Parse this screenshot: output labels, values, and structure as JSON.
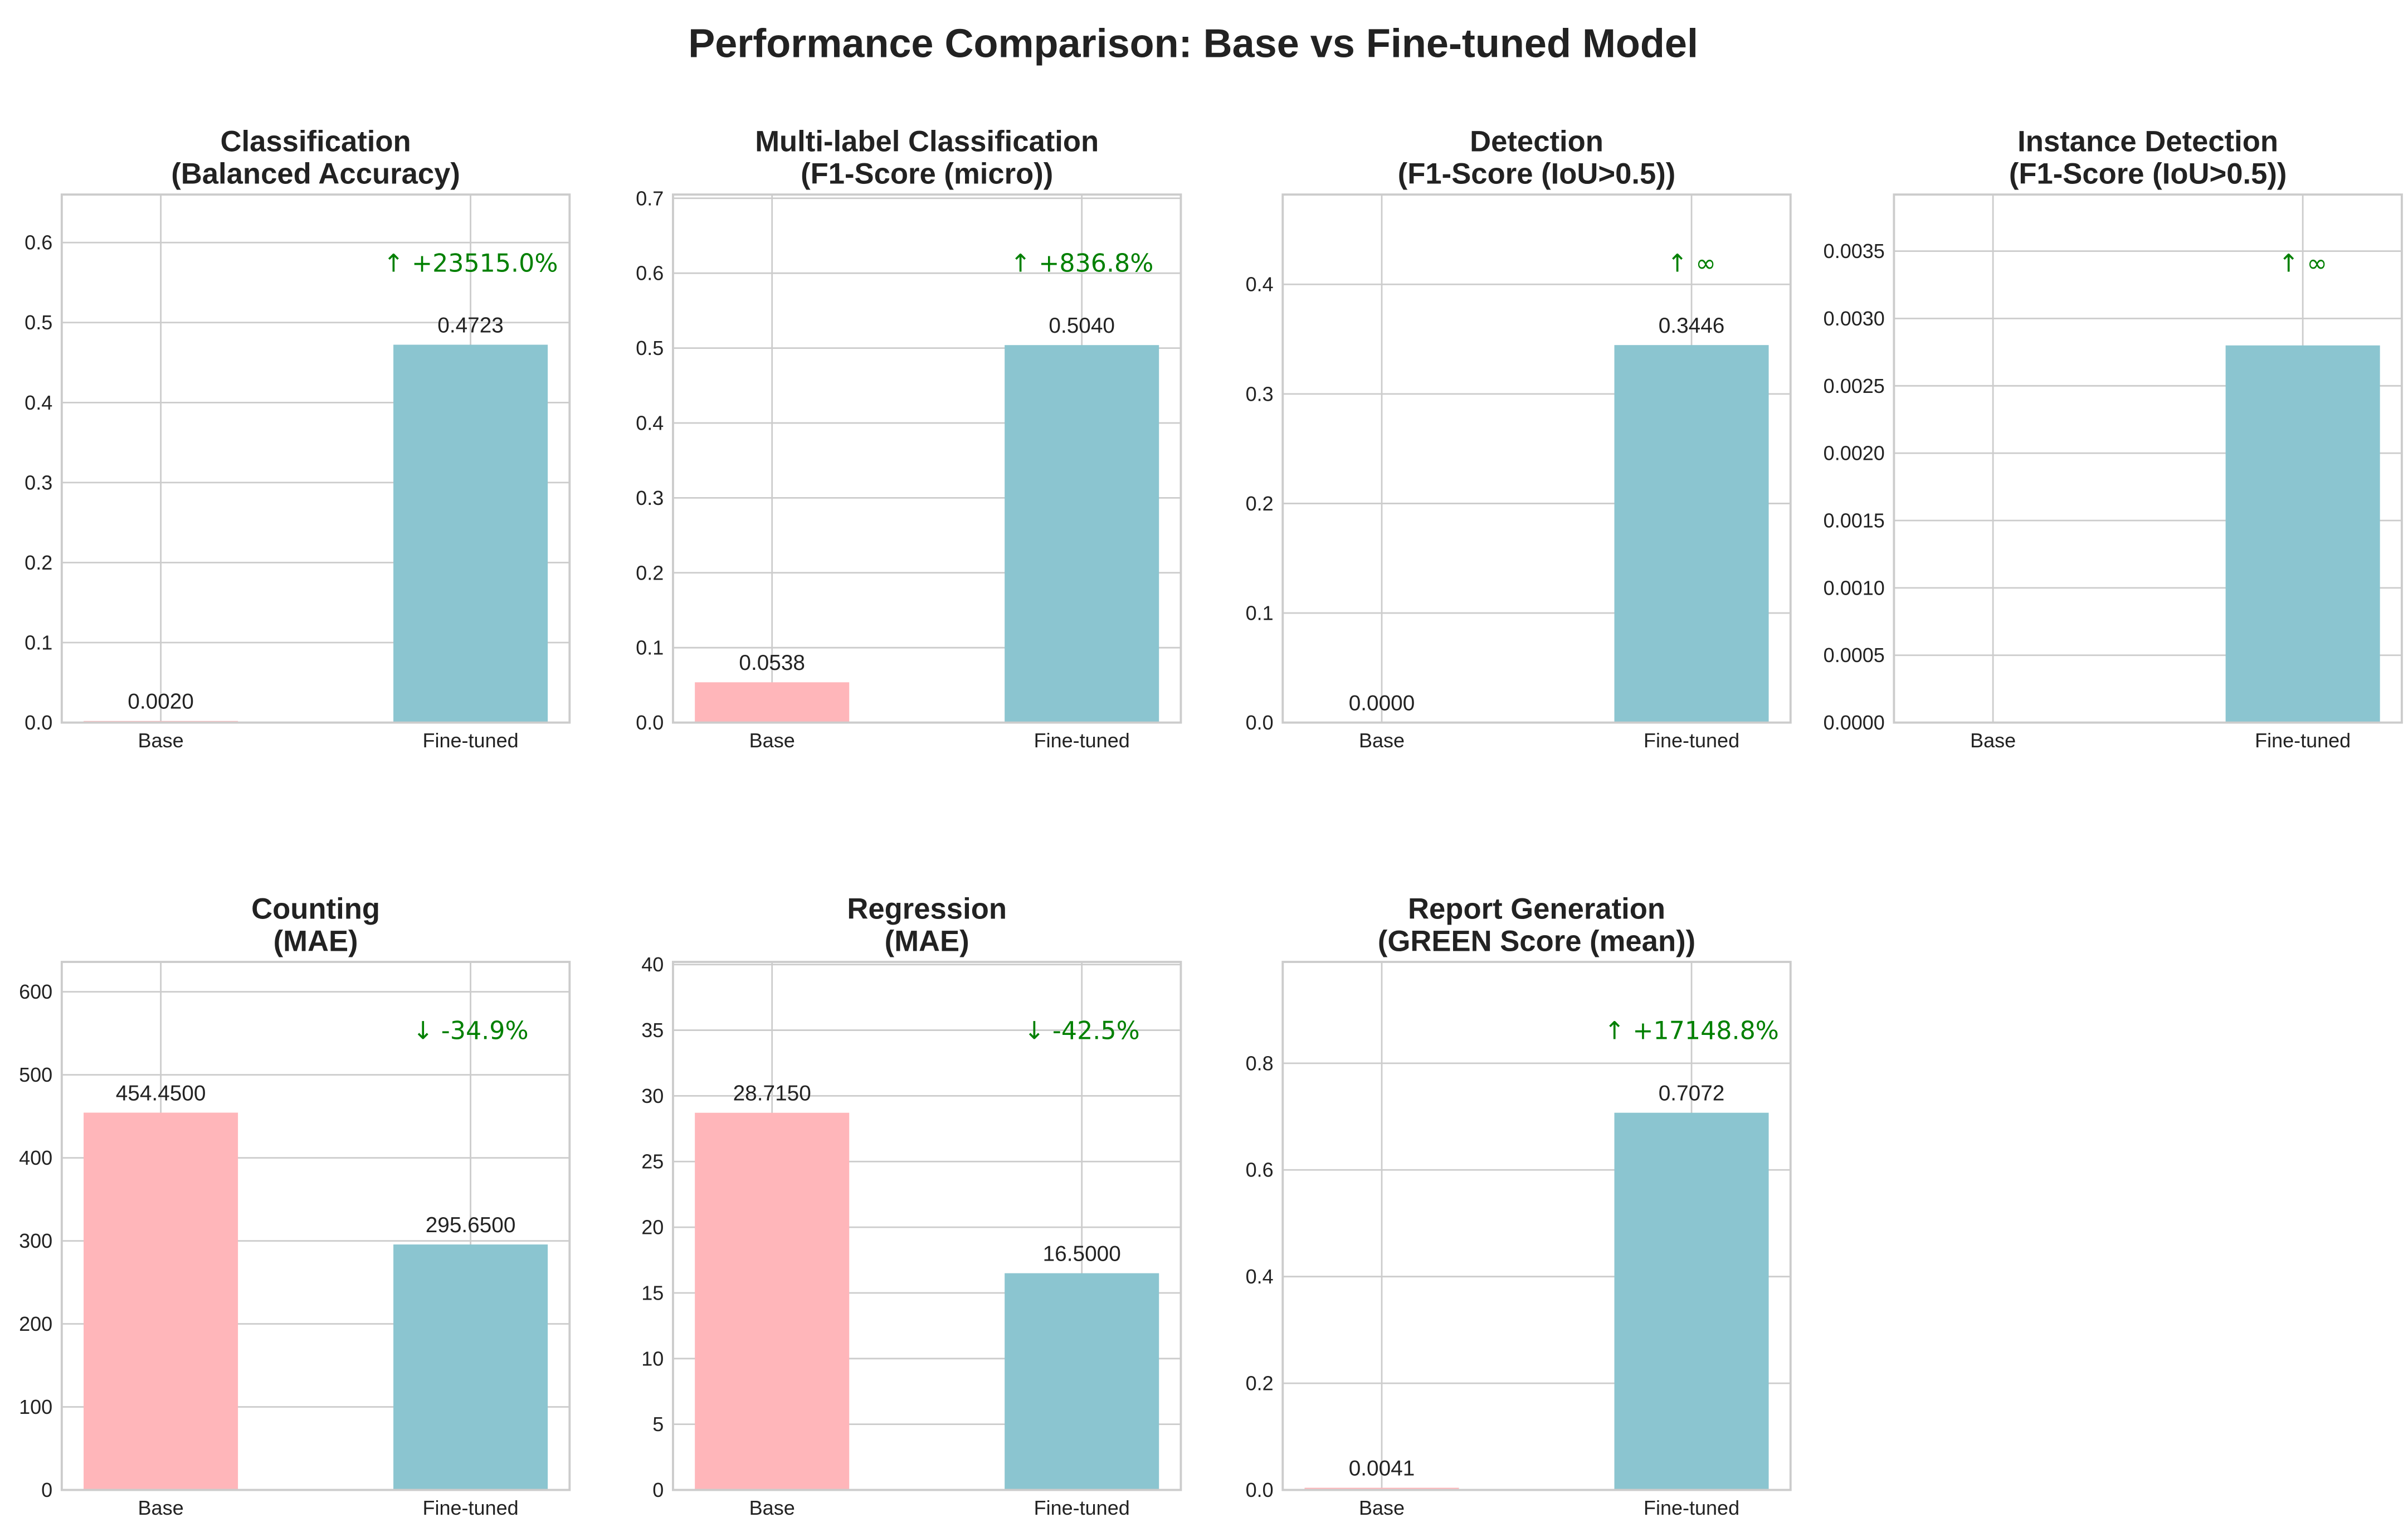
{
  "title": "Performance Comparison: Base vs Fine-tuned Model",
  "colors": {
    "base": "#ffb6ba",
    "finetuned": "#8bc5d0",
    "improvement": "#008000",
    "grid": "#cccccc"
  },
  "chart_data": [
    {
      "type": "bar",
      "title": "Classification",
      "subtitle": "(Balanced Accuracy)",
      "categories": [
        "Base",
        "Fine-tuned"
      ],
      "values": [
        0.002,
        0.4723
      ],
      "value_labels": [
        "0.0020",
        "0.4723"
      ],
      "change_label": "↑ +23515.0%",
      "ylim": [
        0,
        0.66
      ],
      "yticks": [
        0,
        0.1,
        0.2,
        0.3,
        0.4,
        0.5,
        0.6
      ],
      "ytick_labels": [
        "0.0",
        "0.1",
        "0.2",
        "0.3",
        "0.4",
        "0.5",
        "0.6"
      ],
      "grid": true
    },
    {
      "type": "bar",
      "title": "Multi-label Classification",
      "subtitle": "(F1-Score (micro))",
      "categories": [
        "Base",
        "Fine-tuned"
      ],
      "values": [
        0.0538,
        0.504
      ],
      "value_labels": [
        "0.0538",
        "0.5040"
      ],
      "change_label": "↑ +836.8%",
      "ylim": [
        0,
        0.705
      ],
      "yticks": [
        0,
        0.1,
        0.2,
        0.3,
        0.4,
        0.5,
        0.6,
        0.7
      ],
      "ytick_labels": [
        "0.0",
        "0.1",
        "0.2",
        "0.3",
        "0.4",
        "0.5",
        "0.6",
        "0.7"
      ],
      "grid": true
    },
    {
      "type": "bar",
      "title": "Detection",
      "subtitle": "(F1-Score (IoU>0.5))",
      "categories": [
        "Base",
        "Fine-tuned"
      ],
      "values": [
        0.0,
        0.3446
      ],
      "value_labels": [
        "0.0000",
        "0.3446"
      ],
      "change_label": "↑ ∞",
      "ylim": [
        0,
        0.482
      ],
      "yticks": [
        0,
        0.1,
        0.2,
        0.3,
        0.4
      ],
      "ytick_labels": [
        "0.0",
        "0.1",
        "0.2",
        "0.3",
        "0.4"
      ],
      "grid": true
    },
    {
      "type": "bar",
      "title": "Instance Detection",
      "subtitle": "(F1-Score (IoU>0.5))",
      "categories": [
        "Base",
        "Fine-tuned"
      ],
      "values": [
        0.0,
        0.0028
      ],
      "value_labels": [
        "",
        ""
      ],
      "change_label": "↑ ∞",
      "ylim": [
        0,
        0.00392
      ],
      "yticks": [
        0,
        0.0005,
        0.001,
        0.0015,
        0.002,
        0.0025,
        0.003,
        0.0035
      ],
      "ytick_labels": [
        "0.0000",
        "0.0005",
        "0.0010",
        "0.0015",
        "0.0020",
        "0.0025",
        "0.0030",
        "0.0035"
      ],
      "grid": true
    },
    {
      "type": "bar",
      "title": "Counting",
      "subtitle": "(MAE)",
      "categories": [
        "Base",
        "Fine-tuned"
      ],
      "values": [
        454.45,
        295.65
      ],
      "value_labels": [
        "454.4500",
        "295.6500"
      ],
      "change_label": "↓ -34.9%",
      "ylim": [
        0,
        636
      ],
      "yticks": [
        0,
        100,
        200,
        300,
        400,
        500,
        600
      ],
      "ytick_labels": [
        "0",
        "100",
        "200",
        "300",
        "400",
        "500",
        "600"
      ],
      "grid": true
    },
    {
      "type": "bar",
      "title": "Regression",
      "subtitle": "(MAE)",
      "categories": [
        "Base",
        "Fine-tuned"
      ],
      "values": [
        28.715,
        16.5
      ],
      "value_labels": [
        "28.7150",
        "16.5000"
      ],
      "change_label": "↓ -42.5%",
      "ylim": [
        0,
        40.2
      ],
      "yticks": [
        0,
        5,
        10,
        15,
        20,
        25,
        30,
        35,
        40
      ],
      "ytick_labels": [
        "0",
        "5",
        "10",
        "15",
        "20",
        "25",
        "30",
        "35",
        "40"
      ],
      "grid": true
    },
    {
      "type": "bar",
      "title": "Report Generation",
      "subtitle": "(GREEN Score (mean))",
      "categories": [
        "Base",
        "Fine-tuned"
      ],
      "values": [
        0.0041,
        0.7072
      ],
      "value_labels": [
        "0.0041",
        "0.7072"
      ],
      "change_label": "↑ +17148.8%",
      "ylim": [
        0,
        0.99
      ],
      "yticks": [
        0,
        0.2,
        0.4,
        0.6,
        0.8
      ],
      "ytick_labels": [
        "0.0",
        "0.2",
        "0.4",
        "0.6",
        "0.8"
      ],
      "grid": true
    }
  ]
}
